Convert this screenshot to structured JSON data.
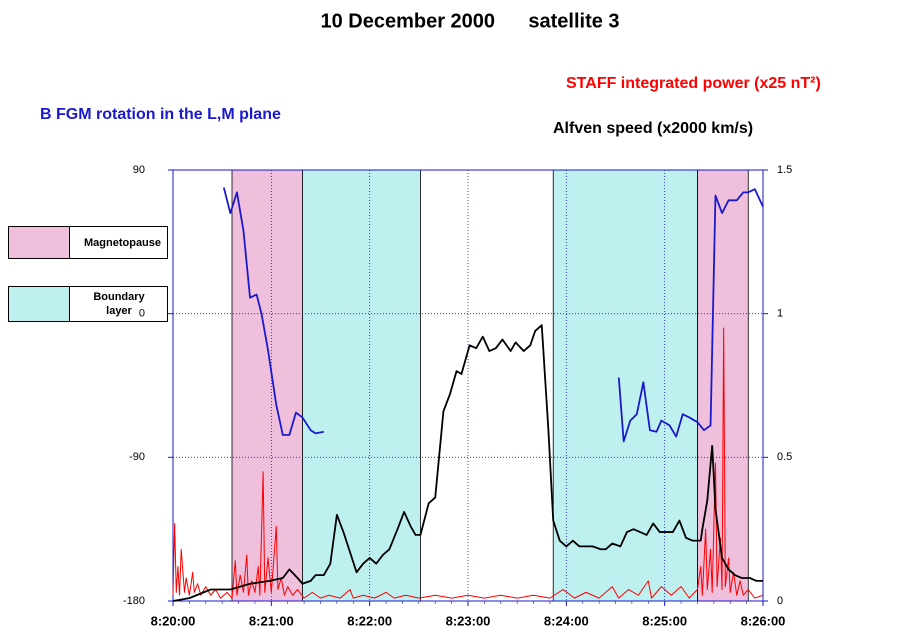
{
  "chart_data": {
    "type": "line",
    "title": "10 December 2000      satellite 3",
    "xlim": [
      "8:20:00",
      "8:26:00"
    ],
    "xticks": [
      "8:20:00",
      "8:21:00",
      "8:22:00",
      "8:23:00",
      "8:24:00",
      "8:25:00",
      "8:26:00"
    ],
    "ylim": [
      -180,
      90
    ],
    "yticks": [
      -180,
      -90,
      0,
      90
    ],
    "y2lim": [
      0,
      1.5
    ],
    "y2ticks": [
      0,
      0.5,
      1,
      1.5
    ],
    "grid": true,
    "bands": [
      {
        "name": "Magnetopause",
        "color": "#efbfdc",
        "spans": [
          {
            "start": "8:20:36",
            "end": "8:21:19"
          },
          {
            "start": "8:25:20",
            "end": "8:25:51"
          }
        ]
      },
      {
        "name": "Boundary layer",
        "color": "#bff0f0",
        "spans": [
          {
            "start": "8:21:19",
            "end": "8:22:31"
          },
          {
            "start": "8:23:52",
            "end": "8:25:20"
          }
        ]
      }
    ],
    "series": [
      {
        "name": "STAFF integrated power (x25 nT²)",
        "color": "#ff0000",
        "axis": "y2",
        "x": [
          "8:20:00",
          "8:20:01",
          "8:20:02",
          "8:20:03",
          "8:20:04",
          "8:20:05",
          "8:20:07",
          "8:20:08",
          "8:20:10",
          "8:20:12",
          "8:20:13",
          "8:20:15",
          "8:20:17",
          "8:20:20",
          "8:20:23",
          "8:20:26",
          "8:20:29",
          "8:20:33",
          "8:20:36",
          "8:20:38",
          "8:20:39",
          "8:20:41",
          "8:20:43",
          "8:20:45",
          "8:20:46",
          "8:20:48",
          "8:20:50",
          "8:20:52",
          "8:20:53",
          "8:20:55",
          "8:20:56",
          "8:20:58",
          "8:21:00",
          "8:21:03",
          "8:21:04",
          "8:21:06",
          "8:21:08",
          "8:21:10",
          "8:21:13",
          "8:21:16",
          "8:21:20",
          "8:21:25",
          "8:21:30",
          "8:21:35",
          "8:21:42",
          "8:21:48",
          "8:21:50",
          "8:21:56",
          "8:22:03",
          "8:22:10",
          "8:22:15",
          "8:22:22",
          "8:22:30",
          "8:22:40",
          "8:22:50",
          "8:23:00",
          "8:23:10",
          "8:23:20",
          "8:23:30",
          "8:23:40",
          "8:23:50",
          "8:23:58",
          "8:24:05",
          "8:24:12",
          "8:24:20",
          "8:24:28",
          "8:24:32",
          "8:24:38",
          "8:24:44",
          "8:24:50",
          "8:24:52",
          "8:24:58",
          "8:25:04",
          "8:25:10",
          "8:25:15",
          "8:25:20",
          "8:25:22",
          "8:25:23",
          "8:25:25",
          "8:25:26",
          "8:25:28",
          "8:25:29",
          "8:25:31",
          "8:25:32",
          "8:25:34",
          "8:25:35",
          "8:25:36",
          "8:25:37",
          "8:25:39",
          "8:25:40",
          "8:25:42",
          "8:25:44",
          "8:25:46",
          "8:25:48",
          "8:25:51",
          "8:25:55",
          "8:26:00"
        ],
        "values": [
          0.02,
          0.27,
          0.03,
          0.12,
          0.02,
          0.18,
          0.03,
          0.08,
          0.02,
          0.1,
          0.03,
          0.06,
          0.02,
          0.05,
          0.02,
          0.04,
          0.01,
          0.03,
          0.01,
          0.14,
          0.02,
          0.09,
          0.03,
          0.16,
          0.02,
          0.07,
          0.03,
          0.12,
          0.02,
          0.45,
          0.03,
          0.15,
          0.03,
          0.26,
          0.04,
          0.08,
          0.02,
          0.05,
          0.02,
          0.04,
          0.01,
          0.03,
          0.01,
          0.02,
          0.01,
          0.04,
          0.01,
          0.02,
          0.01,
          0.03,
          0.01,
          0.02,
          0.01,
          0.02,
          0.01,
          0.02,
          0.01,
          0.02,
          0.01,
          0.02,
          0.01,
          0.04,
          0.01,
          0.03,
          0.01,
          0.05,
          0.01,
          0.04,
          0.02,
          0.07,
          0.01,
          0.05,
          0.02,
          0.05,
          0.01,
          0.04,
          0.12,
          0.02,
          0.25,
          0.04,
          0.18,
          0.03,
          0.48,
          0.05,
          0.22,
          0.04,
          0.95,
          0.05,
          0.15,
          0.03,
          0.1,
          0.02,
          0.07,
          0.02,
          0.04,
          0.01,
          0.02
        ]
      },
      {
        "name": "B FGM rotation in the L,M plane",
        "color": "#1a1acc",
        "x": [
          "8:20:31",
          "8:20:35",
          "8:20:39",
          "8:20:43",
          "8:20:47",
          "8:20:51",
          "8:20:54",
          "8:20:58",
          "8:21:03",
          "8:21:07",
          "8:21:11",
          "8:21:15",
          "8:21:19",
          "8:21:24",
          "8:21:27",
          "8:21:32",
          "8:22:00",
          "8:24:32",
          "8:24:35",
          "8:24:39",
          "8:24:43",
          "8:24:47",
          "8:24:51",
          "8:24:55",
          "8:24:58",
          "8:25:03",
          "8:25:07",
          "8:25:11",
          "8:25:15",
          "8:25:20",
          "8:25:24",
          "8:25:28",
          "8:25:31",
          "8:25:35",
          "8:25:39",
          "8:25:44",
          "8:25:48",
          "8:25:51",
          "8:25:55",
          "8:26:00"
        ],
        "values": [
          79,
          63,
          76,
          52,
          10,
          12,
          0,
          -23,
          -57,
          -76,
          -76,
          -62,
          -65,
          -73,
          -75,
          -74,
          null,
          -40,
          -80,
          -67,
          -63,
          -43,
          -73,
          -74,
          -67,
          -70,
          -77,
          -63,
          -65,
          -68,
          -73,
          -70,
          74,
          63,
          71,
          71,
          76,
          76,
          78,
          67
        ]
      },
      {
        "name": "Alfven speed (x2000 km/s)",
        "color": "#000000",
        "axis": "y2",
        "x": [
          "8:20:00",
          "8:20:10",
          "8:20:23",
          "8:20:35",
          "8:20:47",
          "8:20:59",
          "8:21:07",
          "8:21:11",
          "8:21:16",
          "8:21:19",
          "8:21:24",
          "8:21:27",
          "8:21:32",
          "8:21:36",
          "8:21:40",
          "8:21:44",
          "8:21:48",
          "8:21:52",
          "8:21:56",
          "8:22:00",
          "8:22:04",
          "8:22:08",
          "8:22:12",
          "8:22:17",
          "8:22:21",
          "8:22:25",
          "8:22:28",
          "8:22:31",
          "8:22:36",
          "8:22:40",
          "8:22:45",
          "8:22:49",
          "8:22:53",
          "8:22:56",
          "8:23:01",
          "8:23:05",
          "8:23:09",
          "8:23:13",
          "8:23:17",
          "8:23:21",
          "8:23:26",
          "8:23:29",
          "8:23:34",
          "8:23:38",
          "8:23:41",
          "8:23:45",
          "8:23:49",
          "8:23:52",
          "8:23:56",
          "8:24:00",
          "8:24:04",
          "8:24:08",
          "8:24:12",
          "8:24:16",
          "8:24:21",
          "8:24:24",
          "8:24:28",
          "8:24:33",
          "8:24:37",
          "8:24:41",
          "8:24:45",
          "8:24:49",
          "8:24:53",
          "8:24:57",
          "8:25:01",
          "8:25:05",
          "8:25:09",
          "8:25:13",
          "8:25:17",
          "8:25:22",
          "8:25:23",
          "8:25:26",
          "8:25:29",
          "8:25:31",
          "8:25:35",
          "8:25:39",
          "8:25:43",
          "8:25:47",
          "8:25:52",
          "8:25:56",
          "8:26:00"
        ],
        "values": [
          0.0,
          0.01,
          0.04,
          0.04,
          0.06,
          0.07,
          0.08,
          0.11,
          0.08,
          0.06,
          0.07,
          0.09,
          0.09,
          0.13,
          0.3,
          0.24,
          0.17,
          0.1,
          0.13,
          0.15,
          0.13,
          0.16,
          0.18,
          0.25,
          0.31,
          0.26,
          0.23,
          0.23,
          0.34,
          0.36,
          0.66,
          0.72,
          0.8,
          0.79,
          0.89,
          0.88,
          0.92,
          0.87,
          0.88,
          0.91,
          0.87,
          0.9,
          0.87,
          0.89,
          0.94,
          0.96,
          0.6,
          0.28,
          0.21,
          0.19,
          0.21,
          0.19,
          0.19,
          0.19,
          0.18,
          0.18,
          0.2,
          0.19,
          0.24,
          0.25,
          0.24,
          0.23,
          0.27,
          0.24,
          0.24,
          0.24,
          0.28,
          0.22,
          0.21,
          0.21,
          0.25,
          0.35,
          0.54,
          0.32,
          0.15,
          0.11,
          0.09,
          0.08,
          0.08,
          0.07,
          0.07
        ]
      }
    ]
  }
}
